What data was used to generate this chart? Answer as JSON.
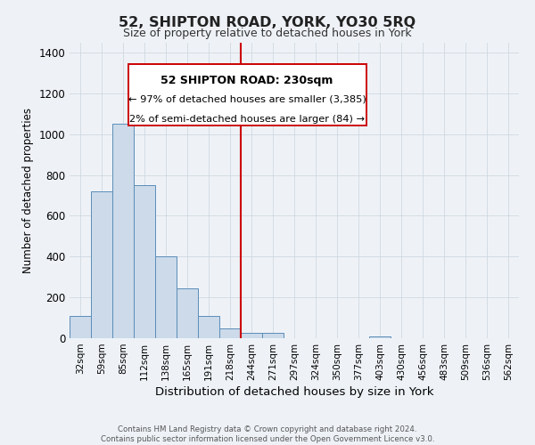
{
  "title": "52, SHIPTON ROAD, YORK, YO30 5RQ",
  "subtitle": "Size of property relative to detached houses in York",
  "xlabel": "Distribution of detached houses by size in York",
  "ylabel": "Number of detached properties",
  "footer_line1": "Contains HM Land Registry data © Crown copyright and database right 2024.",
  "footer_line2": "Contains public sector information licensed under the Open Government Licence v3.0.",
  "bar_labels": [
    "32sqm",
    "59sqm",
    "85sqm",
    "112sqm",
    "138sqm",
    "165sqm",
    "191sqm",
    "218sqm",
    "244sqm",
    "271sqm",
    "297sqm",
    "324sqm",
    "350sqm",
    "377sqm",
    "403sqm",
    "430sqm",
    "456sqm",
    "483sqm",
    "509sqm",
    "536sqm",
    "562sqm"
  ],
  "bar_values": [
    107,
    718,
    1052,
    748,
    400,
    244,
    110,
    48,
    28,
    28,
    0,
    0,
    0,
    0,
    10,
    0,
    0,
    0,
    0,
    0,
    0
  ],
  "bar_color": "#ccdaea",
  "bar_edge_color": "#5b8db8",
  "grid_color": "#d0d8e0",
  "red_line_x": 7.5,
  "annotation_title": "52 SHIPTON ROAD: 230sqm",
  "annotation_line1": "← 97% of detached houses are smaller (3,385)",
  "annotation_line2": "2% of semi-detached houses are larger (84) →",
  "annotation_box_color": "#ffffff",
  "annotation_border_color": "#cc0000",
  "ylim": [
    0,
    1450
  ],
  "yticks": [
    0,
    200,
    400,
    600,
    800,
    1000,
    1200,
    1400
  ],
  "background_color": "#eef2f7"
}
